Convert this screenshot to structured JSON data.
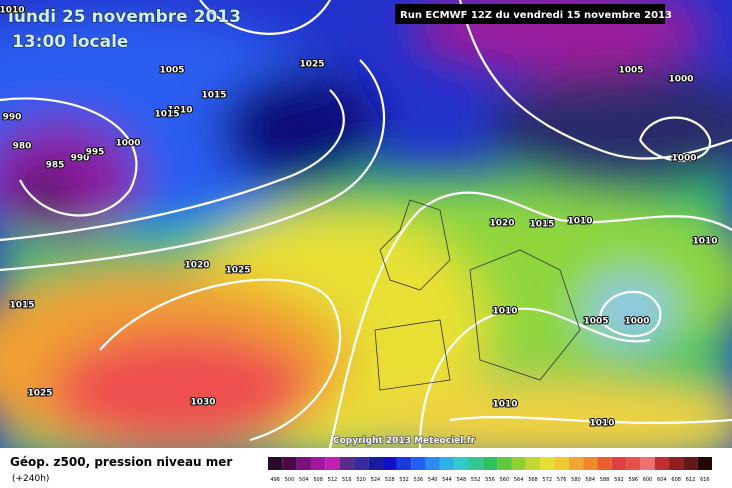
{
  "header": {
    "title": "lundi 25 novembre 2013",
    "time": "13:00 locale",
    "run": "Run ECMWF 12Z du vendredi 15 novembre 2013"
  },
  "isobar_labels": [
    "1010",
    "1005",
    "1025",
    "1015",
    "1010",
    "1015",
    "990",
    "980",
    "985",
    "990",
    "995",
    "1000",
    "1020",
    "1025",
    "1015",
    "1025",
    "1030",
    "1020",
    "1015",
    "1010",
    "1010",
    "1005",
    "1000",
    "1000",
    "1010",
    "1005",
    "1000",
    "1010",
    "1010"
  ],
  "copyright": "Copyright 2013 Meteociel.fr",
  "footer": {
    "caption": "Géop. z500, pression niveau mer",
    "lead": "(+240h)"
  },
  "colorbar": [
    "496",
    "500",
    "504",
    "508",
    "512",
    "516",
    "520",
    "524",
    "528",
    "532",
    "536",
    "540",
    "544",
    "548",
    "552",
    "556",
    "560",
    "564",
    "568",
    "572",
    "576",
    "580",
    "584",
    "588",
    "592",
    "596",
    "600",
    "604",
    "608",
    "612",
    "616"
  ]
}
